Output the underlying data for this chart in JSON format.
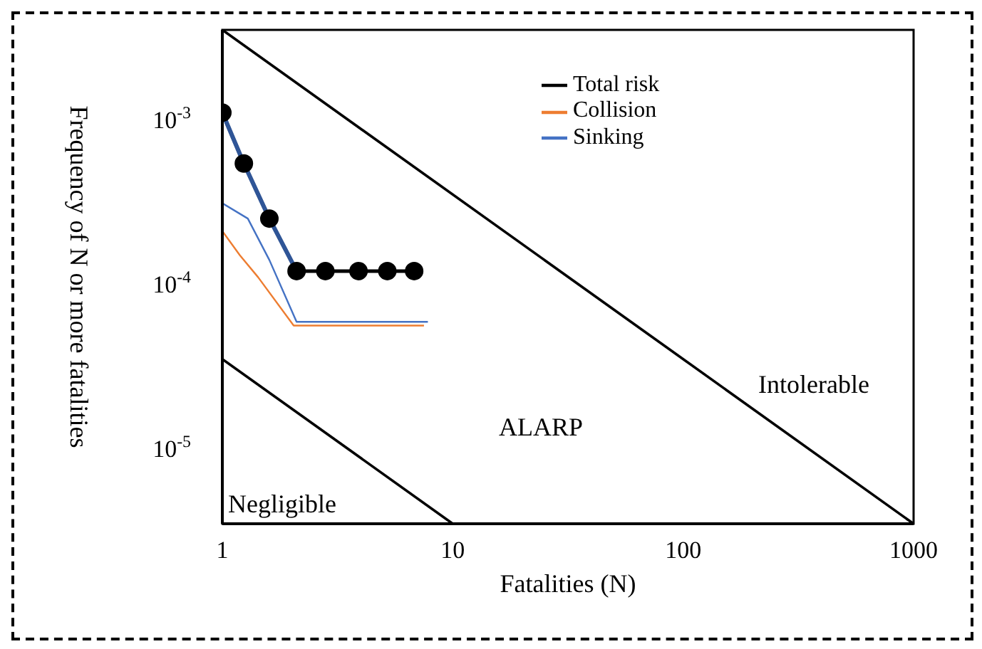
{
  "chart_data": {
    "type": "line",
    "xlabel": "Fatalities (N)",
    "ylabel": "Frequency of N or more fatalities",
    "log": "xy",
    "grid": false,
    "legend": "top right",
    "xlim": [
      1,
      1000
    ],
    "xticks": [
      1,
      10,
      100,
      1000
    ],
    "ylim": [
      3.5e-06,
      0.0035
    ],
    "yticks": [
      {
        "value": 0.001,
        "label": "10$^{-3}$"
      },
      {
        "value": 0.0001,
        "label": "10$^{-4}$"
      },
      {
        "value": 1e-05,
        "label": "10$^{-5}$"
      }
    ],
    "series": [
      {
        "color": "#000000",
        "x": [
          1,
          1000
        ],
        "values": [
          0.0035,
          3.5e-06
        ],
        "marker": "none"
      },
      {
        "color": "#000000",
        "x": [
          1,
          10
        ],
        "values": [
          3.5e-05,
          3.5e-06
        ],
        "marker": "none"
      },
      {
        "name": "Total risk",
        "color": "#000000",
        "x": [
          1,
          1.24,
          1.6,
          2.1,
          2.8,
          3.9,
          5.2,
          6.8
        ],
        "values": [
          0.0011,
          0.00054,
          0.00025,
          0.00012,
          0.00012,
          0.00012,
          0.00012,
          0.00012
        ],
        "marker": "circle"
      },
      {
        "name": "Collision",
        "color": "#ed7d31",
        "x": [
          1,
          1.19,
          1.43,
          2.04,
          7.5
        ],
        "values": [
          0.00021,
          0.00015,
          0.00011,
          5.6e-05,
          5.6e-05
        ],
        "marker": "none"
      },
      {
        "name": "Sinking",
        "color": "#4472c4",
        "x": [
          1,
          1.29,
          1.6,
          2.1,
          7.8
        ],
        "values": [
          0.00031,
          0.00025,
          0.00014,
          5.9e-05,
          5.9e-05
        ],
        "marker": "none"
      },
      {
        "color": "#2f5597",
        "x": [
          1,
          1.24,
          1.6,
          2.1
        ],
        "values": [
          0.0011,
          0.00054,
          0.00025,
          0.00012
        ],
        "marker": "none"
      }
    ],
    "annotations": [
      "Intolerable",
      "ALARP",
      "Negligible"
    ]
  }
}
